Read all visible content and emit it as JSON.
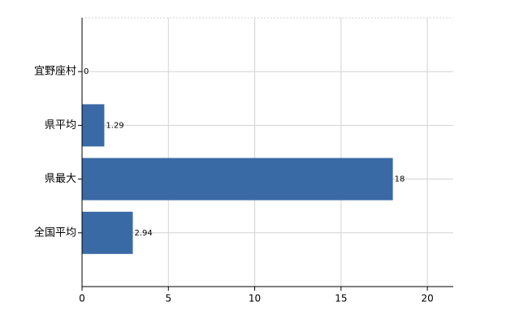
{
  "chart_data": {
    "type": "bar",
    "orientation": "horizontal",
    "categories": [
      "宜野座村",
      "県平均",
      "県最大",
      "全国平均"
    ],
    "values": [
      0,
      1.29,
      18,
      2.94
    ],
    "color": "#3a6aa6",
    "xlim": [
      0,
      21.5
    ],
    "xticks": [
      0,
      5,
      10,
      15,
      20
    ],
    "grid": true
  }
}
